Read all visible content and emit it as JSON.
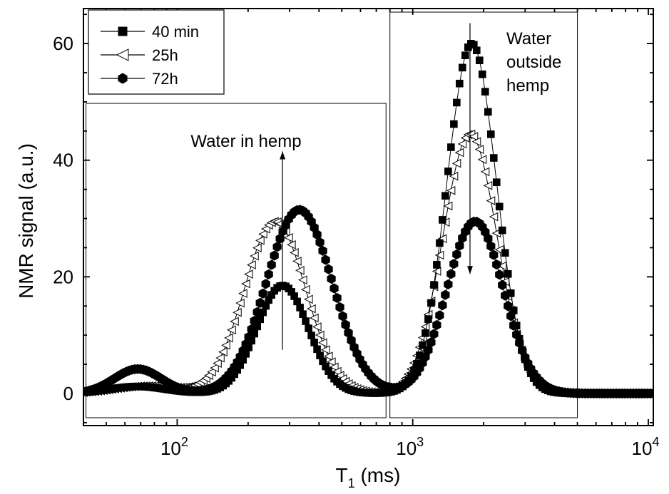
{
  "chart_data": {
    "type": "scatter",
    "title": "",
    "xlabel": "T",
    "xlabel_sub": "1",
    "xlabel_unit": " (ms)",
    "ylabel": "NMR signal (a.u.)",
    "xscale": "log",
    "xlim": [
      40,
      10500
    ],
    "ylim": [
      -5.5,
      66
    ],
    "x_ticks": [
      {
        "value": 100,
        "base": "10",
        "exp": "2"
      },
      {
        "value": 1000,
        "base": "10",
        "exp": "3"
      },
      {
        "value": 10000,
        "base": "10",
        "exp": "4"
      }
    ],
    "y_ticks": [
      0,
      20,
      40,
      60
    ],
    "grid": false,
    "legend_position": "top-left",
    "series": [
      {
        "name": "40 min",
        "marker": "square",
        "peaks": [
          {
            "amp": 1.2,
            "center": 68,
            "width": 0.12
          },
          {
            "amp": 18.5,
            "center": 280,
            "width": 0.11
          },
          {
            "amp": 60,
            "center": 1780,
            "width": 0.105
          }
        ]
      },
      {
        "name": "25h",
        "marker": "triangle-left",
        "peaks": [
          {
            "amp": 1.3,
            "center": 75,
            "width": 0.14
          },
          {
            "amp": 29.5,
            "center": 260,
            "width": 0.13
          },
          {
            "amp": 44.5,
            "center": 1750,
            "width": 0.115
          }
        ]
      },
      {
        "name": "72h",
        "marker": "hexagon",
        "peaks": [
          {
            "amp": 4.2,
            "center": 68,
            "width": 0.1
          },
          {
            "amp": 31.5,
            "center": 330,
            "width": 0.14
          },
          {
            "amp": 29.5,
            "center": 1840,
            "width": 0.12
          }
        ]
      }
    ],
    "annotations": [
      {
        "id": "water-in-hemp",
        "lines": [
          "Water in hemp"
        ],
        "arrow": "up",
        "arrow_x": 280,
        "arrow_y_from": 7.5,
        "arrow_y_to": 41.5,
        "region": [
          41,
          770
        ]
      },
      {
        "id": "water-outside-hemp",
        "lines": [
          "Water",
          "outside",
          "hemp"
        ],
        "arrow": "down",
        "arrow_x": 1750,
        "arrow_y_from": 63.5,
        "arrow_y_to": 20.5,
        "region": [
          800,
          5000
        ]
      }
    ]
  }
}
